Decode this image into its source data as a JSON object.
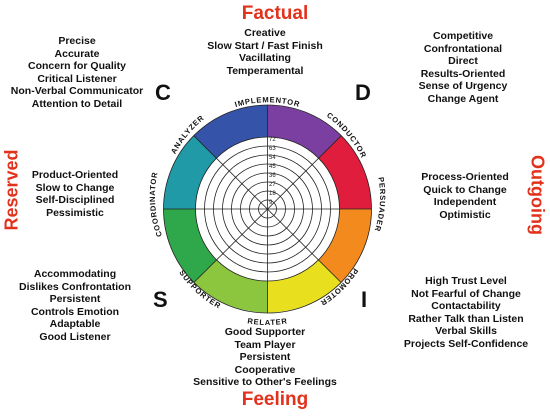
{
  "axes": {
    "top": "Factual",
    "bottom": "Feeling",
    "left": "Reserved",
    "right": "Outgoing"
  },
  "quadrant_letters": {
    "c": "C",
    "d": "D",
    "s": "S",
    "i": "I"
  },
  "wheel_labels": {
    "implementor": "IMPLEMENTOR",
    "conductor": "CONDUCTOR",
    "persuader": "PERSUADER",
    "promoter": "PROMOTER",
    "relater": "RELATER",
    "supporter": "SUPPORTER",
    "coordinator": "COORDINATOR",
    "analyzer": "ANALYZER"
  },
  "lists": {
    "c_traits": [
      "Precise",
      "Accurate",
      "Concern for Quality",
      "Critical Listener",
      "Non-Verbal Communicator",
      "Attention to Detail"
    ],
    "implementor_traits": [
      "Creative",
      "Slow Start / Fast Finish",
      "Vacillating",
      "Temperamental"
    ],
    "d_traits": [
      "Competitive",
      "Confrontational",
      "Direct",
      "Results-Oriented",
      "Sense of Urgency",
      "Change Agent"
    ],
    "coordinator_traits": [
      "Product-Oriented",
      "Slow to Change",
      "Self-Disciplined",
      "Pessimistic"
    ],
    "persuader_traits": [
      "Process-Oriented",
      "Quick to Change",
      "Independent",
      "Optimistic"
    ],
    "s_traits": [
      "Accommodating",
      "Dislikes Confrontation",
      "Persistent",
      "Controls Emotion",
      "Adaptable",
      "Good Listener"
    ],
    "i_traits": [
      "High Trust Level",
      "Not Fearful of Change",
      "Contactability",
      "Rather Talk than Listen",
      "Verbal Skills",
      "Projects Self-Confidence"
    ],
    "relater_traits": [
      "Good Supporter",
      "Team Player",
      "Persistent",
      "Cooperative",
      "Sensitive to Other's Feelings"
    ]
  },
  "ring_numbers": [
    "9",
    "18",
    "27",
    "36",
    "45",
    "54",
    "63",
    "72"
  ],
  "colors": {
    "title_red": "#e2321c",
    "implementor": "#7a3fa0",
    "conductor": "#e01d3c",
    "persuader": "#f28a1e",
    "promoter": "#e8e01f",
    "relater": "#8cc63f",
    "supporter": "#2ea84a",
    "coordinator": "#1f9aa6",
    "analyzer": "#3553a8"
  }
}
